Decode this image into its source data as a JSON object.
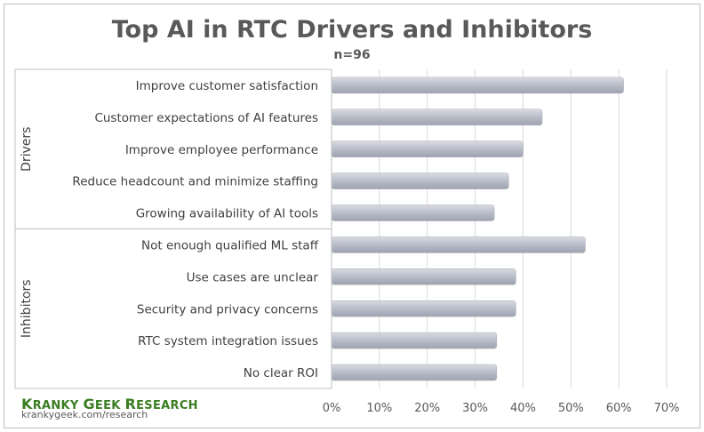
{
  "chart_data": {
    "type": "bar",
    "orientation": "horizontal",
    "title": "Top AI in RTC Drivers and Inhibitors",
    "subtitle": "n=96",
    "groups": [
      {
        "name": "Drivers",
        "categories": [
          "Improve customer satisfaction",
          "Customer expectations of AI features",
          "Improve employee performance",
          "Reduce headcount and minimize staffing",
          "Growing availability of AI tools"
        ],
        "values": [
          61,
          44,
          40,
          37,
          34
        ]
      },
      {
        "name": "Inhibitors",
        "categories": [
          "Not enough qualified ML staff",
          "Use cases are unclear",
          "Security and privacy concerns",
          "RTC system integration issues",
          "No clear ROI"
        ],
        "values": [
          53,
          38.5,
          38.5,
          34.5,
          34.5
        ]
      }
    ],
    "x_ticks": [
      "0%",
      "10%",
      "20%",
      "30%",
      "40%",
      "50%",
      "60%",
      "70%"
    ],
    "xlim": [
      0,
      70
    ],
    "grid": true,
    "legend": "none",
    "bar_color": "#b8bcc8"
  },
  "brand": {
    "first": [
      "K",
      "RANKY"
    ],
    "second": [
      "G",
      "EEK"
    ],
    "third": [
      "R",
      "ESEARCH"
    ],
    "url": "krankygeek.com/research",
    "color": "#3a7d22"
  }
}
